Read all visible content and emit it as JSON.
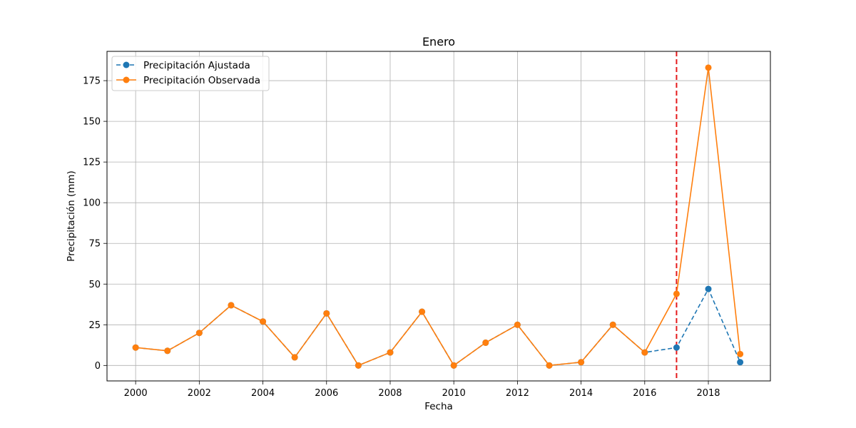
{
  "chart_data": {
    "type": "line",
    "title": "Enero",
    "xlabel": "Fecha",
    "ylabel": "Precipitación (mm)",
    "xlim": [
      1999.1,
      2019.95
    ],
    "ylim": [
      -9.5,
      193
    ],
    "x_ticks": [
      2000,
      2002,
      2004,
      2006,
      2008,
      2010,
      2012,
      2014,
      2016,
      2018
    ],
    "y_ticks": [
      0,
      25,
      50,
      75,
      100,
      125,
      150,
      175
    ],
    "grid": true,
    "legend_position": "top-left",
    "vline": {
      "x": 2017,
      "color": "#e41a1c",
      "style": "dashed"
    },
    "x": [
      2000,
      2001,
      2002,
      2003,
      2004,
      2005,
      2006,
      2007,
      2008,
      2009,
      2010,
      2011,
      2012,
      2013,
      2014,
      2015,
      2016,
      2017,
      2018,
      2019
    ],
    "series": [
      {
        "name": "Precipitación Ajustada",
        "color": "#1f77b4",
        "style": "dashed",
        "values": [
          11,
          9,
          20,
          37,
          27,
          5,
          32,
          0,
          8,
          33,
          0,
          14,
          25,
          0,
          2,
          25,
          8,
          11,
          47,
          2
        ]
      },
      {
        "name": "Precipitación Observada",
        "color": "#ff7f0e",
        "style": "solid",
        "values": [
          11,
          9,
          20,
          37,
          27,
          5,
          32,
          0,
          8,
          33,
          0,
          14,
          25,
          0,
          2,
          25,
          8,
          44,
          183,
          7
        ]
      }
    ]
  }
}
